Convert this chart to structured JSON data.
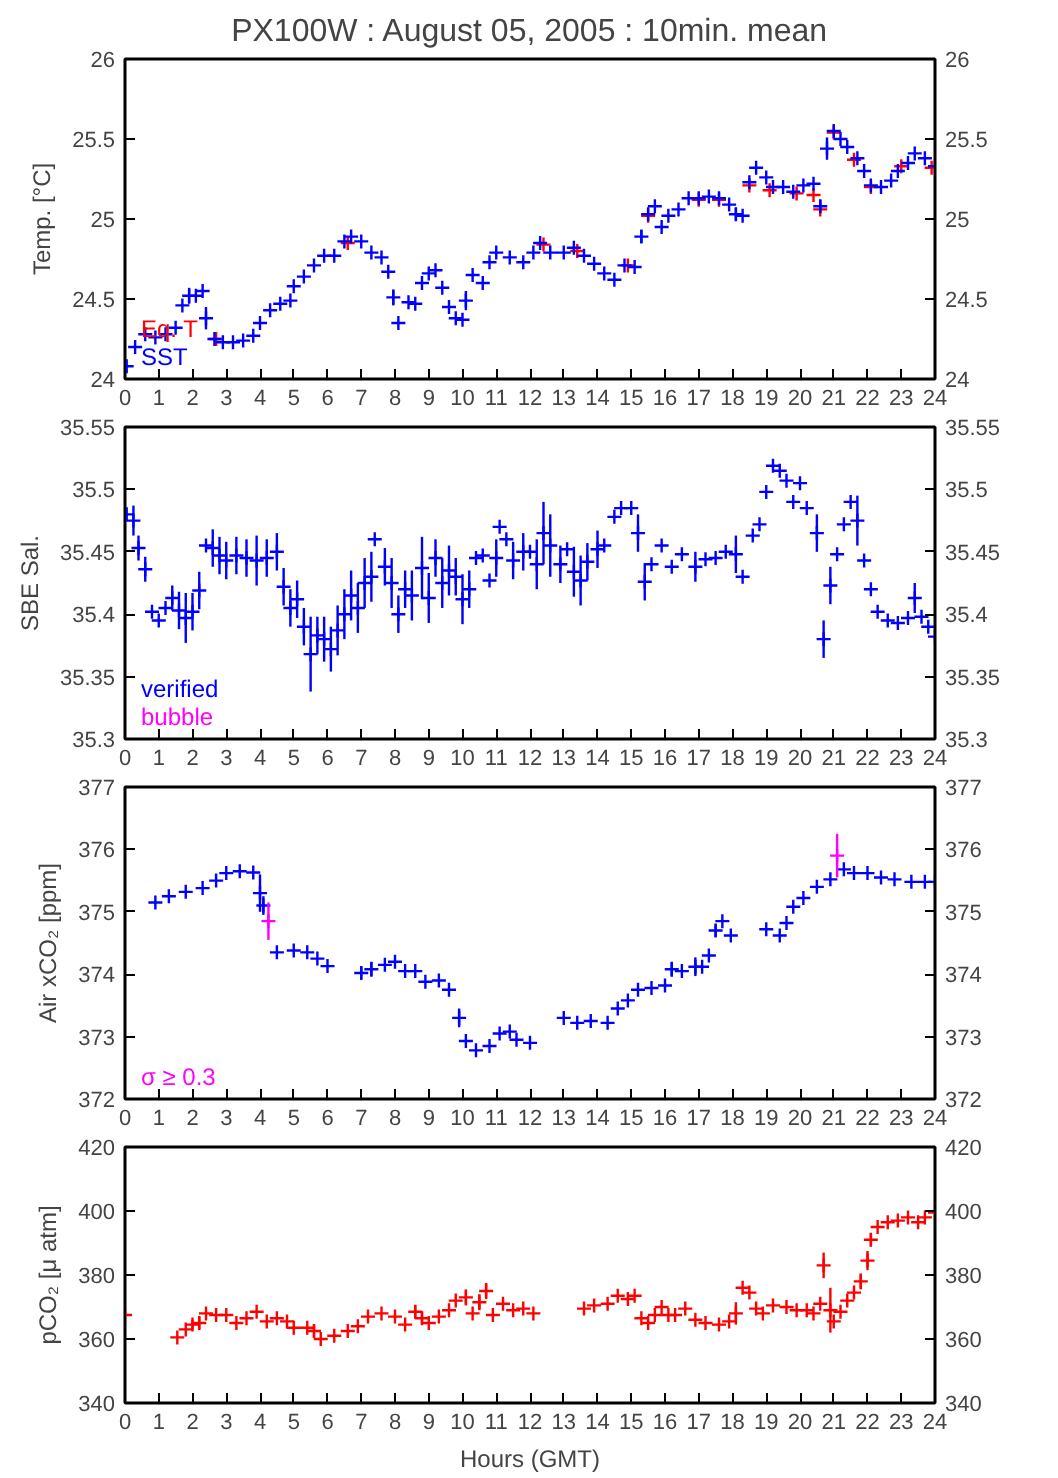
{
  "chart_data": [
    {
      "type": "scatter",
      "title": "PX100W : August 05, 2005 : 10min. mean",
      "ylabel": "Temp. [°C]",
      "xlim": [
        0,
        24
      ],
      "xticks": [
        0,
        1,
        2,
        3,
        4,
        5,
        6,
        7,
        8,
        9,
        10,
        11,
        12,
        13,
        14,
        15,
        16,
        17,
        18,
        19,
        20,
        21,
        22,
        23,
        24
      ],
      "ylim": [
        24,
        26
      ],
      "yticks": [
        24,
        24.5,
        25,
        25.5,
        26
      ],
      "y2lim": [
        24,
        26
      ],
      "y2ticks": [
        24,
        24.5,
        25,
        25.5,
        26
      ],
      "grid": false,
      "legend": "bottom left",
      "marker": "cross",
      "series": [
        {
          "name": "Eq. T",
          "color": "#ff0000",
          "x": [
            2.7,
            6.6,
            12.4,
            13.4,
            14.9,
            15.5,
            17.0,
            17.6,
            18.5,
            19.1,
            19.9,
            20.4,
            20.6,
            21.0,
            21.6,
            22.1,
            23.0,
            23.9
          ],
          "values": [
            24.25,
            24.85,
            24.84,
            24.8,
            24.71,
            25.02,
            25.12,
            25.12,
            25.21,
            25.18,
            25.16,
            25.15,
            25.06,
            25.54,
            25.37,
            25.2,
            25.33,
            25.32
          ]
        },
        {
          "name": "SST",
          "color": "#0000ff",
          "x": [
            0.05,
            0.3,
            0.6,
            0.9,
            1.2,
            1.5,
            1.7,
            1.9,
            2.1,
            2.3,
            2.4,
            2.65,
            2.9,
            3.2,
            3.5,
            3.8,
            4.0,
            4.3,
            4.6,
            4.9,
            5.0,
            5.3,
            5.6,
            5.9,
            6.2,
            6.5,
            6.7,
            7.0,
            7.3,
            7.6,
            7.8,
            7.95,
            8.1,
            8.4,
            8.6,
            8.8,
            9.0,
            9.2,
            9.4,
            9.6,
            9.8,
            10.0,
            10.1,
            10.3,
            10.6,
            10.8,
            11.0,
            11.4,
            11.8,
            12.1,
            12.3,
            12.6,
            13.0,
            13.3,
            13.6,
            13.9,
            14.2,
            14.5,
            14.8,
            15.1,
            15.3,
            15.5,
            15.7,
            15.9,
            16.1,
            16.4,
            16.7,
            17.0,
            17.3,
            17.6,
            17.9,
            18.1,
            18.3,
            18.5,
            18.7,
            19.0,
            19.2,
            19.5,
            19.8,
            20.1,
            20.4,
            20.6,
            20.8,
            21.0,
            21.2,
            21.4,
            21.7,
            21.9,
            22.1,
            22.4,
            22.7,
            22.9,
            23.2,
            23.4,
            23.7,
            24.0
          ],
          "values": [
            24.08,
            24.2,
            24.28,
            24.26,
            24.28,
            24.32,
            24.46,
            24.52,
            24.52,
            24.55,
            24.38,
            24.25,
            24.23,
            24.23,
            24.24,
            24.27,
            24.35,
            24.43,
            24.47,
            24.49,
            24.58,
            24.64,
            24.71,
            24.77,
            24.77,
            24.86,
            24.89,
            24.86,
            24.79,
            24.76,
            24.67,
            24.51,
            24.35,
            24.48,
            24.47,
            24.6,
            24.66,
            24.68,
            24.57,
            24.45,
            24.38,
            24.37,
            24.49,
            24.65,
            24.6,
            24.73,
            24.79,
            24.76,
            24.73,
            24.79,
            24.85,
            24.79,
            24.79,
            24.82,
            24.77,
            24.72,
            24.66,
            24.62,
            24.71,
            24.7,
            24.89,
            25.03,
            25.08,
            24.95,
            25.02,
            25.06,
            25.13,
            25.13,
            25.14,
            25.13,
            25.09,
            25.03,
            25.02,
            25.23,
            25.32,
            25.26,
            25.2,
            25.2,
            25.17,
            25.21,
            25.22,
            25.08,
            25.44,
            25.55,
            25.5,
            25.45,
            25.38,
            25.3,
            25.21,
            25.2,
            25.24,
            25.3,
            25.35,
            25.41,
            25.38,
            25.33
          ],
          "errors": [
            null,
            null,
            null,
            null,
            null,
            null,
            null,
            0.05,
            null,
            null,
            0.07,
            null,
            null,
            null,
            null,
            null,
            null,
            null,
            null,
            null,
            null,
            null,
            null,
            null,
            null,
            null,
            null,
            null,
            null,
            null,
            null,
            0.05,
            null,
            null,
            null,
            null,
            null,
            null,
            null,
            null,
            null,
            null,
            0.06,
            null,
            null,
            null,
            null,
            null,
            null,
            null,
            null,
            null,
            null,
            null,
            null,
            null,
            null,
            null,
            null,
            null,
            0.04,
            null,
            null,
            null,
            null,
            null,
            null,
            null,
            null,
            null,
            null,
            0.04,
            null,
            null,
            null,
            null,
            null,
            null,
            null,
            null,
            null,
            0.04,
            0.07,
            null,
            null,
            null,
            null,
            null,
            null,
            null,
            null,
            null,
            null,
            null,
            null,
            null
          ]
        }
      ]
    },
    {
      "type": "scatter",
      "ylabel": "SBE Sal.",
      "xlim": [
        0,
        24
      ],
      "xticks": [
        0,
        1,
        2,
        3,
        4,
        5,
        6,
        7,
        8,
        9,
        10,
        11,
        12,
        13,
        14,
        15,
        16,
        17,
        18,
        19,
        20,
        21,
        22,
        23,
        24
      ],
      "ylim": [
        35.3,
        35.55
      ],
      "yticks": [
        35.3,
        35.35,
        35.4,
        35.45,
        35.5,
        35.55
      ],
      "y2lim": [
        35.3,
        35.55
      ],
      "y2ticks": [
        35.3,
        35.35,
        35.4,
        35.45,
        35.5,
        35.55
      ],
      "grid": false,
      "legend": "bottom left",
      "marker": "cross",
      "series": [
        {
          "name": "verified",
          "color": "#0000ff",
          "x": [
            0.05,
            0.25,
            0.4,
            0.6,
            0.8,
            1.0,
            1.2,
            1.4,
            1.6,
            1.8,
            2.0,
            2.2,
            2.4,
            2.6,
            2.8,
            3.0,
            3.3,
            3.6,
            3.9,
            4.2,
            4.5,
            4.7,
            4.9,
            5.1,
            5.3,
            5.5,
            5.7,
            5.9,
            6.1,
            6.3,
            6.5,
            6.7,
            6.9,
            7.1,
            7.3,
            7.4,
            7.7,
            7.9,
            8.1,
            8.3,
            8.5,
            8.8,
            9.0,
            9.2,
            9.4,
            9.6,
            9.8,
            10.0,
            10.2,
            10.4,
            10.6,
            10.8,
            11.0,
            11.1,
            11.3,
            11.5,
            11.8,
            12.0,
            12.2,
            12.4,
            12.6,
            12.9,
            13.1,
            13.3,
            13.5,
            13.7,
            14.0,
            14.2,
            14.5,
            14.7,
            15.0,
            15.2,
            15.4,
            15.6,
            15.9,
            16.2,
            16.5,
            16.9,
            17.2,
            17.5,
            17.8,
            18.1,
            18.3,
            18.6,
            18.8,
            19.0,
            19.2,
            19.4,
            19.6,
            19.8,
            20.0,
            20.2,
            20.5,
            20.7,
            20.9,
            21.1,
            21.3,
            21.5,
            21.7,
            21.9,
            22.1,
            22.3,
            22.6,
            22.9,
            23.2,
            23.4,
            23.6,
            23.8,
            24.0
          ],
          "values": [
            35.48,
            35.475,
            35.453,
            35.436,
            35.402,
            35.395,
            35.405,
            35.413,
            35.403,
            35.397,
            35.402,
            35.419,
            35.455,
            35.453,
            35.447,
            35.443,
            35.447,
            35.445,
            35.443,
            35.445,
            35.45,
            35.422,
            35.405,
            35.412,
            35.39,
            35.368,
            35.383,
            35.38,
            35.372,
            35.387,
            35.4,
            35.415,
            35.405,
            35.425,
            35.43,
            35.46,
            35.438,
            35.425,
            35.4,
            35.42,
            35.415,
            35.437,
            35.413,
            35.445,
            35.425,
            35.435,
            35.43,
            35.412,
            35.42,
            35.445,
            35.447,
            35.427,
            35.445,
            35.47,
            35.46,
            35.443,
            35.45,
            35.45,
            35.44,
            35.465,
            35.455,
            35.44,
            35.452,
            35.434,
            35.427,
            35.442,
            35.452,
            35.455,
            35.478,
            35.485,
            35.485,
            35.465,
            35.426,
            35.44,
            35.455,
            35.438,
            35.448,
            35.438,
            35.444,
            35.445,
            35.45,
            35.448,
            35.43,
            35.463,
            35.472,
            35.498,
            35.519,
            35.515,
            35.507,
            35.49,
            35.505,
            35.485,
            35.465,
            35.38,
            35.423,
            35.448,
            35.472,
            35.49,
            35.475,
            35.443,
            35.42,
            35.402,
            35.395,
            35.393,
            35.397,
            35.413,
            35.398,
            35.39,
            35.382
          ],
          "errors": [
            null,
            0.012,
            0.01,
            0.01,
            null,
            null,
            null,
            0.01,
            0.015,
            0.02,
            0.015,
            0.015,
            null,
            0.015,
            0.015,
            0.015,
            0.015,
            0.015,
            0.02,
            0.015,
            0.015,
            0.015,
            0.015,
            0.015,
            0.015,
            0.03,
            0.015,
            0.018,
            0.018,
            0.02,
            0.02,
            0.02,
            0.02,
            0.02,
            0.02,
            null,
            0.015,
            0.02,
            0.015,
            0.015,
            0.02,
            0.025,
            0.02,
            0.015,
            0.02,
            0.02,
            0.015,
            0.02,
            0.015,
            null,
            null,
            null,
            0.015,
            null,
            null,
            0.015,
            0.015,
            null,
            0.02,
            0.025,
            0.025,
            0.015,
            null,
            0.02,
            0.02,
            0.015,
            0.015,
            null,
            null,
            null,
            null,
            0.015,
            0.015,
            null,
            null,
            null,
            null,
            0.012,
            null,
            null,
            null,
            0.015,
            null,
            null,
            null,
            null,
            null,
            null,
            null,
            null,
            null,
            null,
            0.015,
            0.015,
            0.015,
            null,
            null,
            null,
            0.02,
            null,
            null,
            null,
            null,
            null,
            null,
            0.012,
            null,
            null,
            null
          ]
        },
        {
          "name": "bubble",
          "color": "#ff00ff"
        }
      ]
    },
    {
      "type": "scatter",
      "ylabel": "Air xCO₂ [ppm]",
      "xlim": [
        0,
        24
      ],
      "xticks": [
        0,
        1,
        2,
        3,
        4,
        5,
        6,
        7,
        8,
        9,
        10,
        11,
        12,
        13,
        14,
        15,
        16,
        17,
        18,
        19,
        20,
        21,
        22,
        23,
        24
      ],
      "ylim": [
        372,
        377
      ],
      "yticks": [
        372,
        373,
        374,
        375,
        376,
        377
      ],
      "y2lim": [
        372,
        377
      ],
      "y2ticks": [
        372,
        373,
        374,
        375,
        376,
        377
      ],
      "grid": false,
      "legend": "bottom left",
      "marker": "cross",
      "series": [
        {
          "color": "#0000ff",
          "x": [
            0.9,
            1.3,
            1.8,
            2.3,
            2.7,
            3.0,
            3.4,
            3.8,
            4.0,
            4.1,
            4.5,
            5.0,
            5.4,
            5.7,
            6.0,
            6.5,
            7.0,
            7.3,
            7.7,
            8.0,
            8.3,
            8.6,
            8.9,
            9.3,
            9.6,
            9.9,
            10.1,
            10.4,
            10.8,
            11.1,
            11.4,
            11.6,
            12.0,
            12.5,
            13.0,
            13.4,
            13.8,
            14.3,
            14.6,
            14.9,
            15.2,
            15.6,
            16.0,
            16.2,
            16.5,
            16.9,
            17.1,
            17.3,
            17.5,
            17.7,
            17.95,
            18.5,
            19.0,
            19.4,
            19.6,
            19.8,
            20.1,
            20.5,
            20.9,
            21.3,
            21.6,
            22.0,
            22.4,
            22.8,
            23.3,
            23.7,
            24.0
          ],
          "values": [
            375.15,
            375.25,
            375.32,
            375.38,
            375.5,
            375.62,
            375.65,
            375.63,
            375.3,
            375.1,
            374.35,
            374.38,
            374.35,
            374.25,
            374.13,
            null,
            374.02,
            374.08,
            374.15,
            374.2,
            374.05,
            374.05,
            373.88,
            373.9,
            373.75,
            373.3,
            372.93,
            372.78,
            372.85,
            373.05,
            373.08,
            372.95,
            372.9,
            null,
            373.3,
            373.22,
            373.25,
            373.22,
            373.45,
            373.58,
            373.75,
            373.78,
            373.82,
            374.08,
            374.05,
            374.12,
            374.12,
            374.3,
            374.7,
            374.85,
            374.62,
            null,
            374.72,
            374.62,
            374.82,
            375.08,
            375.22,
            375.4,
            375.52,
            375.68,
            375.62,
            375.62,
            375.55,
            375.52,
            375.48,
            375.48,
            375.48
          ],
          "errors": [
            null,
            null,
            null,
            null,
            null,
            null,
            null,
            null,
            0.3,
            0.15,
            null,
            null,
            null,
            null,
            null,
            null,
            0.1,
            0.12,
            null,
            null,
            null,
            null,
            null,
            null,
            null,
            0.15,
            null,
            null,
            null,
            null,
            null,
            null,
            null,
            null,
            null,
            null,
            null,
            null,
            null,
            null,
            null,
            null,
            null,
            0.12,
            null,
            0.15,
            null,
            null,
            0.1,
            null,
            null,
            null,
            null,
            null,
            null,
            null,
            null,
            null,
            null,
            null,
            null,
            null,
            null,
            null,
            null,
            null,
            null
          ]
        },
        {
          "name": "σ ≥ 0.3",
          "color": "#ff00ff",
          "x": [
            4.25,
            21.1
          ],
          "values": [
            374.85,
            375.9
          ],
          "errors": [
            0.3,
            0.35
          ]
        }
      ]
    },
    {
      "type": "scatter",
      "xlabel": "Hours (GMT)",
      "ylabel": "pCO₂ [μ atm]",
      "xlim": [
        0,
        24
      ],
      "xticks": [
        0,
        1,
        2,
        3,
        4,
        5,
        6,
        7,
        8,
        9,
        10,
        11,
        12,
        13,
        14,
        15,
        16,
        17,
        18,
        19,
        20,
        21,
        22,
        23,
        24
      ],
      "ylim": [
        340,
        420
      ],
      "yticks": [
        340,
        360,
        380,
        400,
        420
      ],
      "y2lim": [
        340,
        420
      ],
      "y2ticks": [
        340,
        360,
        380,
        400,
        420
      ],
      "grid": false,
      "marker": "cross",
      "series": [
        {
          "color": "#ff0000",
          "x": [
            0.0,
            1.0,
            1.55,
            1.8,
            2.0,
            2.2,
            2.4,
            2.7,
            3.0,
            3.3,
            3.6,
            3.9,
            4.2,
            4.5,
            4.8,
            5.0,
            5.4,
            5.6,
            5.8,
            6.2,
            6.6,
            6.9,
            7.2,
            7.6,
            8.0,
            8.3,
            8.6,
            8.8,
            9.0,
            9.3,
            9.6,
            9.8,
            10.1,
            10.3,
            10.5,
            10.7,
            10.9,
            11.2,
            11.5,
            11.8,
            12.1,
            12.8,
            13.6,
            13.9,
            14.3,
            14.6,
            14.9,
            15.1,
            15.3,
            15.5,
            15.7,
            15.9,
            16.1,
            16.3,
            16.6,
            16.9,
            17.2,
            17.6,
            17.9,
            18.1,
            18.3,
            18.5,
            18.7,
            18.9,
            19.2,
            19.6,
            19.9,
            20.2,
            20.4,
            20.6,
            20.7,
            20.9,
            21.0,
            21.2,
            21.4,
            21.6,
            21.8,
            22.0,
            22.1,
            22.3,
            22.6,
            22.9,
            23.2,
            23.5,
            23.7,
            24.0
          ],
          "values": [
            367.5,
            null,
            360.5,
            363,
            364.5,
            365,
            368,
            367.5,
            367.5,
            365,
            366.5,
            368.5,
            365.5,
            366.5,
            365.5,
            363.5,
            363.5,
            362.5,
            360,
            361,
            362.5,
            364,
            367,
            368,
            367,
            364.5,
            368.5,
            366.5,
            365,
            367,
            369,
            372,
            373,
            368,
            371.5,
            375,
            367.5,
            371,
            369,
            369.5,
            368,
            null,
            369.5,
            370.5,
            371,
            373.5,
            372.5,
            373.5,
            366.5,
            365,
            367.5,
            370,
            367.5,
            367.5,
            369.5,
            366,
            365,
            364.5,
            365.5,
            368,
            376,
            374.5,
            369.5,
            368,
            370.5,
            370,
            369,
            369,
            368,
            371,
            383,
            369,
            365.5,
            368.5,
            372,
            374.5,
            378,
            384.5,
            391,
            395,
            396.5,
            397,
            398,
            396.5,
            398,
            399.5
          ],
          "errors": [
            null,
            null,
            null,
            null,
            1.5,
            2,
            null,
            null,
            null,
            null,
            null,
            null,
            null,
            null,
            null,
            null,
            null,
            2,
            null,
            null,
            null,
            null,
            null,
            null,
            null,
            null,
            2,
            2,
            null,
            null,
            null,
            null,
            2.5,
            null,
            2.5,
            2.5,
            null,
            null,
            null,
            null,
            null,
            null,
            null,
            null,
            null,
            null,
            null,
            null,
            null,
            null,
            null,
            null,
            null,
            null,
            null,
            null,
            null,
            null,
            null,
            3.5,
            null,
            null,
            null,
            null,
            null,
            null,
            null,
            null,
            null,
            null,
            4,
            7,
            null,
            null,
            null,
            null,
            2.5,
            3,
            2,
            null,
            null,
            null,
            null,
            null,
            null,
            null
          ]
        }
      ]
    }
  ]
}
